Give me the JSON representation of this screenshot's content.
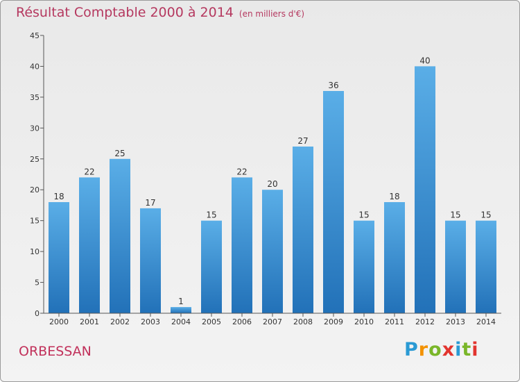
{
  "title": "Résultat Comptable 2000 à 2014",
  "subtitle": "(en milliers d'€)",
  "commune": "ORBESSAN",
  "brand": {
    "letters": [
      "P",
      "r",
      "o",
      "x",
      "i",
      "t",
      "i"
    ],
    "colors": [
      "#2a9ad4",
      "#f39200",
      "#7ab629",
      "#e2342e",
      "#2a9ad4",
      "#7ab629",
      "#e2342e"
    ]
  },
  "colors": {
    "bar_light": "#5aaee7",
    "bar_dark": "#2271b8",
    "title": "#b5385f",
    "axis": "#555555"
  },
  "chart_data": {
    "type": "bar",
    "title": "Résultat Comptable 2000 à 2014",
    "xlabel": "",
    "ylabel": "",
    "categories": [
      "2000",
      "2001",
      "2002",
      "2003",
      "2004",
      "2005",
      "2006",
      "2007",
      "2008",
      "2009",
      "2010",
      "2011",
      "2012",
      "2013",
      "2014"
    ],
    "values": [
      18,
      22,
      25,
      17,
      1,
      15,
      22,
      20,
      27,
      36,
      15,
      18,
      40,
      15,
      15
    ],
    "ylim": [
      0,
      45
    ],
    "yticks": [
      0,
      5,
      10,
      15,
      20,
      25,
      30,
      35,
      40,
      45
    ],
    "grid": false,
    "data_labels": true
  }
}
